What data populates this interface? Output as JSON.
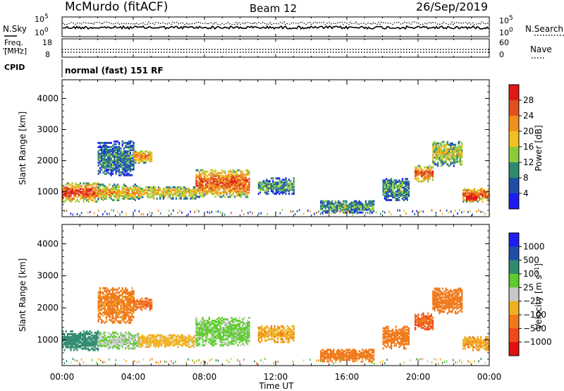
{
  "header": {
    "title": "McMurdo (fitACF)",
    "beam": "Beam 12",
    "date": "26/Sep/2019"
  },
  "status_panels": {
    "nsky": {
      "label": "N.Sky",
      "ticks": [
        "10^5",
        "10^0"
      ]
    },
    "nsearch": {
      "label": "N.Search",
      "ticks": [
        "10^5",
        "10^0"
      ]
    },
    "freq": {
      "label_line1": "Freq.",
      "label_line2": "[MHz]",
      "ticks": [
        "18",
        "8"
      ]
    },
    "nave": {
      "label": "Nave",
      "ticks": [
        "60",
        "0"
      ]
    },
    "cpid": {
      "label": "CPID",
      "text": "normal (fast) 151 RF"
    }
  },
  "chart_data": [
    {
      "type": "heatmap",
      "name": "power",
      "ylabel": "Slant Range [km]",
      "ylim": [
        200,
        4600
      ],
      "yticks": [
        "1000",
        "2000",
        "3000",
        "4000"
      ],
      "xlim": [
        0,
        24
      ],
      "colorbar_label": "Power [dB]",
      "colorbar_ticks": [
        "4",
        "8",
        "12",
        "16",
        "20",
        "24",
        "28"
      ],
      "colors": [
        "#1c1cf0",
        "#1f4fa8",
        "#2e8a6e",
        "#8ccc3c",
        "#f0c020",
        "#f0901c",
        "#e0501c",
        "#e01818"
      ],
      "echo_regions": [
        {
          "t0": 0.0,
          "t1": 2.0,
          "r0": 650,
          "r1": 1250,
          "peak": 0.75
        },
        {
          "t0": 2.0,
          "t1": 4.3,
          "r0": 700,
          "r1": 1200,
          "peak": 0.55
        },
        {
          "t0": 2.0,
          "t1": 4.0,
          "r0": 1500,
          "r1": 2600,
          "peak": 0.25
        },
        {
          "t0": 4.0,
          "t1": 5.0,
          "r0": 1900,
          "r1": 2300,
          "peak": 0.6
        },
        {
          "t0": 4.3,
          "t1": 7.5,
          "r0": 750,
          "r1": 1150,
          "peak": 0.5
        },
        {
          "t0": 7.5,
          "t1": 10.5,
          "r0": 800,
          "r1": 1700,
          "peak": 0.7
        },
        {
          "t0": 11.0,
          "t1": 13.0,
          "r0": 900,
          "r1": 1400,
          "peak": 0.3
        },
        {
          "t0": 14.5,
          "t1": 17.5,
          "r0": 300,
          "r1": 700,
          "peak": 0.3
        },
        {
          "t0": 18.0,
          "t1": 19.5,
          "r0": 700,
          "r1": 1400,
          "peak": 0.3
        },
        {
          "t0": 19.8,
          "t1": 20.8,
          "r0": 1300,
          "r1": 1800,
          "peak": 0.7
        },
        {
          "t0": 20.8,
          "t1": 22.5,
          "r0": 1800,
          "r1": 2600,
          "peak": 0.45
        },
        {
          "t0": 22.5,
          "t1": 24.0,
          "r0": 650,
          "r1": 1100,
          "peak": 0.7
        },
        {
          "t0": 22.7,
          "t1": 23.3,
          "r0": 650,
          "r1": 900,
          "peak": 0.98
        }
      ]
    },
    {
      "type": "heatmap",
      "name": "velocity",
      "ylabel": "Slant Range [km]",
      "ylim": [
        200,
        4600
      ],
      "yticks": [
        "1000",
        "2000",
        "3000",
        "4000"
      ],
      "xlim": [
        0,
        24
      ],
      "xticks": [
        "00:00",
        "04:00",
        "08:00",
        "12:00",
        "16:00",
        "20:00",
        "00:00"
      ],
      "xlabel": "Time UT",
      "colorbar_label": "Velocity [m s^-1]",
      "colorbar_ticks": [
        "1000",
        "500",
        "100",
        "25",
        "−25",
        "−100",
        "−500",
        "−1000"
      ],
      "colors": [
        "#1c1cf0",
        "#1f4fa8",
        "#2e8a6e",
        "#5ccc2c",
        "#c8c8c8",
        "#f0b020",
        "#f07818",
        "#f04818",
        "#e01010"
      ],
      "echo_regions": [
        {
          "t0": 0.0,
          "t1": 2.0,
          "r0": 650,
          "r1": 1250,
          "vel": 200
        },
        {
          "t0": 2.0,
          "t1": 4.3,
          "r0": 700,
          "r1": 1200,
          "vel": 20
        },
        {
          "t0": 2.0,
          "t1": 4.0,
          "r0": 1500,
          "r1": 2600,
          "vel": -150
        },
        {
          "t0": 4.0,
          "t1": 5.0,
          "r0": 1900,
          "r1": 2300,
          "vel": -400
        },
        {
          "t0": 4.3,
          "t1": 7.5,
          "r0": 750,
          "r1": 1150,
          "vel": -60
        },
        {
          "t0": 7.5,
          "t1": 10.5,
          "r0": 800,
          "r1": 1700,
          "vel": 50
        },
        {
          "t0": 11.0,
          "t1": 13.0,
          "r0": 900,
          "r1": 1400,
          "vel": -80
        },
        {
          "t0": 14.5,
          "t1": 17.5,
          "r0": 300,
          "r1": 700,
          "vel": -200
        },
        {
          "t0": 18.0,
          "t1": 19.5,
          "r0": 700,
          "r1": 1400,
          "vel": -300
        },
        {
          "t0": 19.8,
          "t1": 20.8,
          "r0": 1300,
          "r1": 1800,
          "vel": -500
        },
        {
          "t0": 20.8,
          "t1": 22.5,
          "r0": 1800,
          "r1": 2600,
          "vel": -300
        },
        {
          "t0": 22.5,
          "t1": 24.0,
          "r0": 650,
          "r1": 1100,
          "vel": -90
        }
      ]
    }
  ]
}
